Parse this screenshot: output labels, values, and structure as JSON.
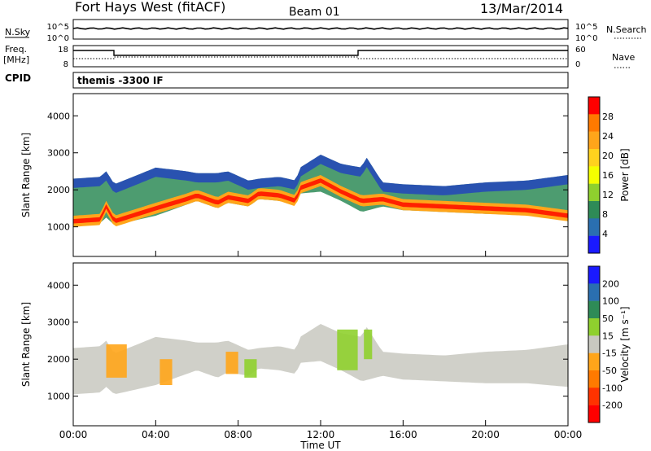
{
  "header": {
    "station": "Fort Hays West (fitACF)",
    "beam": "Beam 01",
    "date": "13/Mar/2014"
  },
  "noise_panel": {
    "left_label": "N.Sky",
    "right_label": "N.Search",
    "left_ticks": [
      "10^5",
      "10^0"
    ],
    "right_ticks": [
      "10^5",
      "10^0"
    ]
  },
  "freq_panel": {
    "left_label_line1": "Freq.",
    "left_label_line2": "[MHz]",
    "right_label": "Nave",
    "left_ticks": [
      "18",
      "8"
    ],
    "right_ticks": [
      "60",
      "0"
    ]
  },
  "cpid": {
    "label": "CPID",
    "value": "themis -3300 IF"
  },
  "chart_data": [
    {
      "type": "heatmap",
      "name": "power",
      "ylabel": "Slant Range [km]",
      "ylim": [
        200,
        4600
      ],
      "yticks": [
        1000,
        2000,
        3000,
        4000
      ],
      "colorbar": {
        "label": "Power [dB]",
        "ticks": [
          "28",
          "24",
          "20",
          "16",
          "12",
          "8",
          "4"
        ],
        "colors": [
          "#ff0000",
          "#ff7a00",
          "#ffa51a",
          "#ffd21e",
          "#f5ff00",
          "#8fd02e",
          "#2e8b57",
          "#2a6fb0",
          "#1a1aff"
        ]
      },
      "band_lower_km": [
        [
          0,
          1050
        ],
        [
          1.3,
          1100
        ],
        [
          1.6,
          1250
        ],
        [
          2.0,
          1050
        ],
        [
          4,
          1300
        ],
        [
          5.5,
          1600
        ],
        [
          6,
          1700
        ],
        [
          7,
          1500
        ],
        [
          7.5,
          1650
        ],
        [
          8.5,
          1550
        ],
        [
          9,
          1750
        ],
        [
          10,
          1700
        ],
        [
          10.8,
          1600
        ],
        [
          11,
          1900
        ],
        [
          12,
          1950
        ],
        [
          13,
          1700
        ],
        [
          14,
          1400
        ],
        [
          15,
          1550
        ],
        [
          16,
          1450
        ],
        [
          18,
          1400
        ],
        [
          20,
          1350
        ],
        [
          22,
          1350
        ],
        [
          24,
          1250
        ]
      ],
      "band_upper_km": [
        [
          0,
          2300
        ],
        [
          1.3,
          2350
        ],
        [
          1.6,
          2500
        ],
        [
          2.0,
          2150
        ],
        [
          4,
          2600
        ],
        [
          5.5,
          2500
        ],
        [
          6,
          2450
        ],
        [
          7,
          2450
        ],
        [
          7.5,
          2500
        ],
        [
          8.5,
          2250
        ],
        [
          9,
          2300
        ],
        [
          10,
          2350
        ],
        [
          10.8,
          2250
        ],
        [
          11,
          2600
        ],
        [
          12,
          2950
        ],
        [
          13,
          2700
        ],
        [
          14,
          2600
        ],
        [
          14.2,
          2900
        ],
        [
          15,
          2200
        ],
        [
          16,
          2150
        ],
        [
          18,
          2100
        ],
        [
          20,
          2200
        ],
        [
          22,
          2250
        ],
        [
          24,
          2400
        ]
      ],
      "peak_km": [
        [
          0,
          1150
        ],
        [
          1.3,
          1200
        ],
        [
          1.6,
          1550
        ],
        [
          2.0,
          1150
        ],
        [
          4,
          1500
        ],
        [
          5.5,
          1750
        ],
        [
          6,
          1850
        ],
        [
          7,
          1650
        ],
        [
          7.5,
          1800
        ],
        [
          8.5,
          1700
        ],
        [
          9,
          1900
        ],
        [
          10,
          1850
        ],
        [
          10.8,
          1700
        ],
        [
          11,
          2050
        ],
        [
          12,
          2250
        ],
        [
          13,
          1950
        ],
        [
          14,
          1700
        ],
        [
          15,
          1750
        ],
        [
          16,
          1600
        ],
        [
          18,
          1550
        ],
        [
          20,
          1500
        ],
        [
          22,
          1450
        ],
        [
          24,
          1300
        ]
      ]
    },
    {
      "type": "heatmap",
      "name": "velocity",
      "ylabel": "Slant Range [km]",
      "ylim": [
        200,
        4600
      ],
      "yticks": [
        1000,
        2000,
        3000,
        4000
      ],
      "colorbar": {
        "label": "Velocity [m s⁻¹]",
        "ticks": [
          "200",
          "100",
          "50",
          "15",
          "-15",
          "-50",
          "-100",
          "-200"
        ],
        "colors": [
          "#1a1aff",
          "#2a6fb0",
          "#2e8b57",
          "#8fd02e",
          "#c8c8c0",
          "#ffa51a",
          "#ff7a00",
          "#ff3300",
          "#ff0000"
        ]
      },
      "band_lower_km": [
        [
          0,
          1050
        ],
        [
          1.3,
          1100
        ],
        [
          1.6,
          1250
        ],
        [
          2.0,
          1050
        ],
        [
          4,
          1300
        ],
        [
          5.5,
          1600
        ],
        [
          6,
          1700
        ],
        [
          7,
          1500
        ],
        [
          7.5,
          1650
        ],
        [
          8.5,
          1550
        ],
        [
          9,
          1750
        ],
        [
          10,
          1700
        ],
        [
          10.8,
          1600
        ],
        [
          11,
          1900
        ],
        [
          12,
          1950
        ],
        [
          13,
          1700
        ],
        [
          14,
          1400
        ],
        [
          15,
          1550
        ],
        [
          16,
          1450
        ],
        [
          18,
          1400
        ],
        [
          20,
          1350
        ],
        [
          22,
          1350
        ],
        [
          24,
          1250
        ]
      ],
      "band_upper_km": [
        [
          0,
          2300
        ],
        [
          1.3,
          2350
        ],
        [
          1.6,
          2500
        ],
        [
          2.0,
          2150
        ],
        [
          4,
          2600
        ],
        [
          5.5,
          2500
        ],
        [
          6,
          2450
        ],
        [
          7,
          2450
        ],
        [
          7.5,
          2500
        ],
        [
          8.5,
          2250
        ],
        [
          9,
          2300
        ],
        [
          10,
          2350
        ],
        [
          10.8,
          2250
        ],
        [
          11,
          2600
        ],
        [
          12,
          2950
        ],
        [
          13,
          2700
        ],
        [
          14,
          2600
        ],
        [
          14.2,
          2900
        ],
        [
          15,
          2200
        ],
        [
          16,
          2150
        ],
        [
          18,
          2100
        ],
        [
          20,
          2200
        ],
        [
          22,
          2250
        ],
        [
          24,
          2400
        ]
      ]
    }
  ],
  "time_axis": {
    "label": "Time UT",
    "ticks": [
      "00:00",
      "04:00",
      "08:00",
      "12:00",
      "16:00",
      "20:00",
      "00:00"
    ]
  }
}
